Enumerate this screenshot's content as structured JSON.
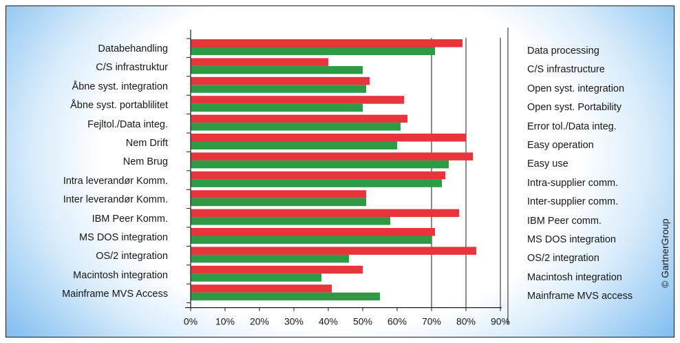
{
  "chart_data": {
    "type": "bar",
    "orientation": "horizontal",
    "categories": [
      "Databehandling",
      "C/S infrastruktur",
      "Åbne syst. integration",
      "Åbne syst. portablilitet",
      "Fejltol./Data integ.",
      "Nem Drift",
      "Nem Brug",
      "Intra leverandør Komm.",
      "Inter leverandør Komm.",
      "IBM Peer Komm.",
      "MS DOS integration",
      "OS/2 integration",
      "Macintosh integration",
      "Mainframe MVS Access"
    ],
    "categories_translated": [
      "Data processing",
      "C/S infrastructure",
      "Open syst. integration",
      "Open syst. Portability",
      "Error tol./Data integ.",
      "Easy operation",
      "Easy use",
      "Intra-supplier comm.",
      "Inter-supplier comm.",
      "IBM Peer comm.",
      "MS DOS integration",
      "OS/2 integration",
      "Macintosh integration",
      "Mainframe MVS access"
    ],
    "series": [
      {
        "color": "#e8343b",
        "values": [
          79,
          40,
          52,
          62,
          63,
          80,
          82,
          74,
          51,
          78,
          71,
          83,
          50,
          41
        ]
      },
      {
        "color": "#2e9a46",
        "values": [
          71,
          50,
          51,
          50,
          61,
          60,
          75,
          73,
          51,
          58,
          70,
          46,
          38,
          55
        ]
      }
    ],
    "xlim": [
      0,
      90
    ],
    "xticks": [
      "0%",
      "10%",
      "20%",
      "30%",
      "40%",
      "50%",
      "60%",
      "70%",
      "80%",
      "90%"
    ],
    "grid": "vertical at 70%, 80%, 90%",
    "credit": "© GartnerGroup"
  }
}
